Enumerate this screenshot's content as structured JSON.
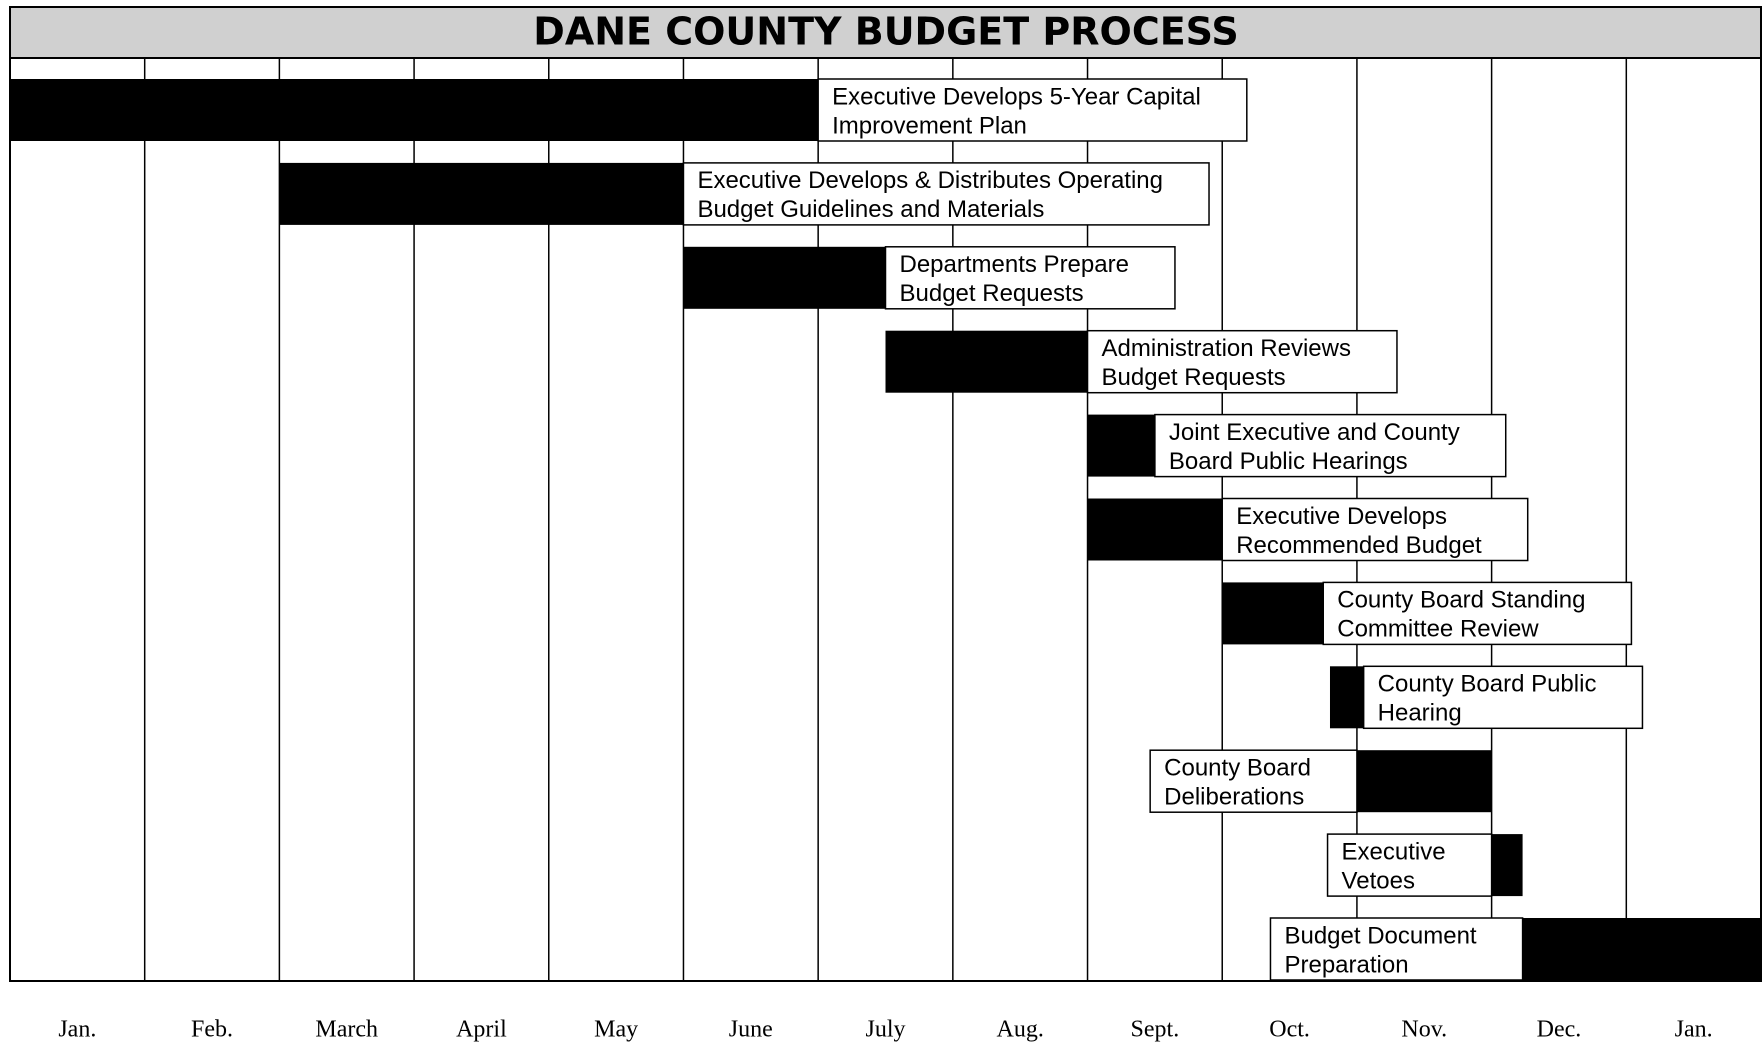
{
  "chart_data": {
    "type": "gantt",
    "title": "DANE COUNTY BUDGET PROCESS",
    "categories": [
      "Jan.",
      "Feb.",
      "March",
      "April",
      "May",
      "June",
      "July",
      "Aug.",
      "Sept.",
      "Oct.",
      "Nov.",
      "Dec.",
      "Jan."
    ],
    "xlim": [
      0,
      13
    ],
    "color": "#000000",
    "tasks": [
      {
        "label": [
          "Executive Develops 5-Year Capital",
          "Improvement Plan"
        ],
        "start": 0,
        "end": 6
      },
      {
        "label": [
          "Executive Develops & Distributes Operating",
          "Budget Guidelines and Materials"
        ],
        "start": 2,
        "end": 5
      },
      {
        "label": [
          "Departments Prepare",
          "Budget Requests"
        ],
        "start": 5,
        "end": 6.5
      },
      {
        "label": [
          "Administration Reviews",
          "Budget Requests"
        ],
        "start": 6.5,
        "end": 8
      },
      {
        "label": [
          "Joint Executive and County",
          "Board Public Hearings"
        ],
        "start": 8,
        "end": 8.5
      },
      {
        "label": [
          "Executive Develops",
          "Recommended Budget"
        ],
        "start": 8,
        "end": 9
      },
      {
        "label": [
          "County Board Standing",
          "Committee Review"
        ],
        "start": 9,
        "end": 9.75
      },
      {
        "label": [
          "County Board Public",
          "Hearing"
        ],
        "start": 9.8,
        "end": 10.05
      },
      {
        "label": [
          "County Board",
          "Deliberations"
        ],
        "start": 10,
        "end": 11
      },
      {
        "label": [
          "Executive",
          "Vetoes"
        ],
        "start": 11,
        "end": 11.23
      },
      {
        "label": [
          "Budget Document",
          "Preparation"
        ],
        "start": 11.23,
        "end": 13
      }
    ]
  }
}
